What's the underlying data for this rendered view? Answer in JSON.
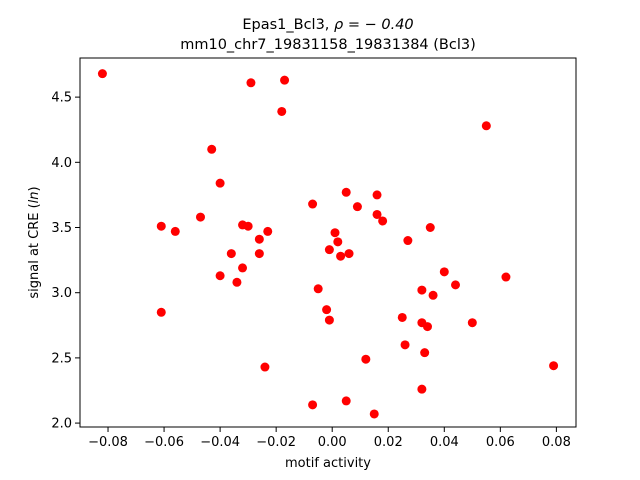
{
  "chart_data": {
    "type": "scatter",
    "title_line1_prefix": "Epas1_Bcl3, ",
    "title_line1_rho": "ρ = − 0.40",
    "title_line2": "mm10_chr7_19831158_19831384 (Bcl3)",
    "xlabel": "motif activity",
    "ylabel_prefix": "signal at CRE (",
    "ylabel_italic": "ln",
    "ylabel_suffix": ")",
    "xlim": [
      -0.09,
      0.087
    ],
    "ylim": [
      1.97,
      4.8
    ],
    "xticks": [
      -0.08,
      -0.06,
      -0.04,
      -0.02,
      0.0,
      0.02,
      0.04,
      0.06,
      0.08
    ],
    "xtick_labels": [
      "−0.08",
      "−0.06",
      "−0.04",
      "−0.02",
      "0.00",
      "0.02",
      "0.04",
      "0.06",
      "0.08"
    ],
    "yticks": [
      2.0,
      2.5,
      3.0,
      3.5,
      4.0,
      4.5
    ],
    "ytick_labels": [
      "2.0",
      "2.5",
      "3.0",
      "3.5",
      "4.0",
      "4.5"
    ],
    "marker_color": "#ff0000",
    "grid": false,
    "points": [
      {
        "x": -0.082,
        "y": 4.68
      },
      {
        "x": -0.061,
        "y": 3.51
      },
      {
        "x": -0.061,
        "y": 2.85
      },
      {
        "x": -0.056,
        "y": 3.47
      },
      {
        "x": -0.047,
        "y": 3.58
      },
      {
        "x": -0.043,
        "y": 4.1
      },
      {
        "x": -0.04,
        "y": 3.84
      },
      {
        "x": -0.04,
        "y": 3.13
      },
      {
        "x": -0.036,
        "y": 3.3
      },
      {
        "x": -0.034,
        "y": 3.08
      },
      {
        "x": -0.032,
        "y": 3.52
      },
      {
        "x": -0.032,
        "y": 3.19
      },
      {
        "x": -0.03,
        "y": 3.51
      },
      {
        "x": -0.029,
        "y": 4.61
      },
      {
        "x": -0.026,
        "y": 3.41
      },
      {
        "x": -0.026,
        "y": 3.3
      },
      {
        "x": -0.024,
        "y": 2.43
      },
      {
        "x": -0.023,
        "y": 3.47
      },
      {
        "x": -0.018,
        "y": 4.39
      },
      {
        "x": -0.017,
        "y": 4.63
      },
      {
        "x": -0.007,
        "y": 3.68
      },
      {
        "x": -0.007,
        "y": 2.14
      },
      {
        "x": -0.005,
        "y": 3.03
      },
      {
        "x": -0.002,
        "y": 2.87
      },
      {
        "x": -0.001,
        "y": 3.33
      },
      {
        "x": -0.001,
        "y": 2.79
      },
      {
        "x": 0.001,
        "y": 3.46
      },
      {
        "x": 0.002,
        "y": 3.39
      },
      {
        "x": 0.003,
        "y": 3.28
      },
      {
        "x": 0.005,
        "y": 3.77
      },
      {
        "x": 0.005,
        "y": 2.17
      },
      {
        "x": 0.006,
        "y": 3.3
      },
      {
        "x": 0.009,
        "y": 3.66
      },
      {
        "x": 0.012,
        "y": 2.49
      },
      {
        "x": 0.015,
        "y": 2.07
      },
      {
        "x": 0.016,
        "y": 3.75
      },
      {
        "x": 0.016,
        "y": 3.6
      },
      {
        "x": 0.018,
        "y": 3.55
      },
      {
        "x": 0.025,
        "y": 2.81
      },
      {
        "x": 0.026,
        "y": 2.6
      },
      {
        "x": 0.027,
        "y": 3.4
      },
      {
        "x": 0.032,
        "y": 3.02
      },
      {
        "x": 0.032,
        "y": 2.77
      },
      {
        "x": 0.033,
        "y": 2.54
      },
      {
        "x": 0.032,
        "y": 2.26
      },
      {
        "x": 0.034,
        "y": 2.74
      },
      {
        "x": 0.035,
        "y": 3.5
      },
      {
        "x": 0.036,
        "y": 2.98
      },
      {
        "x": 0.04,
        "y": 3.16
      },
      {
        "x": 0.044,
        "y": 3.06
      },
      {
        "x": 0.05,
        "y": 2.77
      },
      {
        "x": 0.055,
        "y": 4.28
      },
      {
        "x": 0.062,
        "y": 3.12
      },
      {
        "x": 0.079,
        "y": 2.44
      }
    ]
  }
}
